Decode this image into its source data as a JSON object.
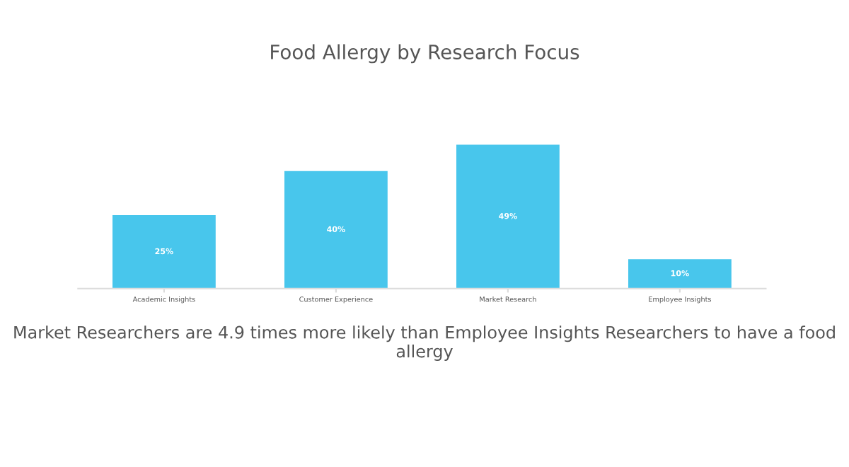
{
  "chart_data": {
    "type": "bar",
    "title": "Food Allergy by Research Focus",
    "categories": [
      "Academic Insights",
      "Customer Experience",
      "Market Research",
      "Employee Insights"
    ],
    "values": [
      25,
      40,
      49,
      10
    ],
    "value_labels": [
      "25%",
      "40%",
      "49%",
      "10%"
    ],
    "color": "#48c6ec",
    "annotations": [
      "Market Researchers are 4.9 times more likely than Employee Insights Researchers to have a food allergy"
    ],
    "grid": false,
    "legend": false
  }
}
